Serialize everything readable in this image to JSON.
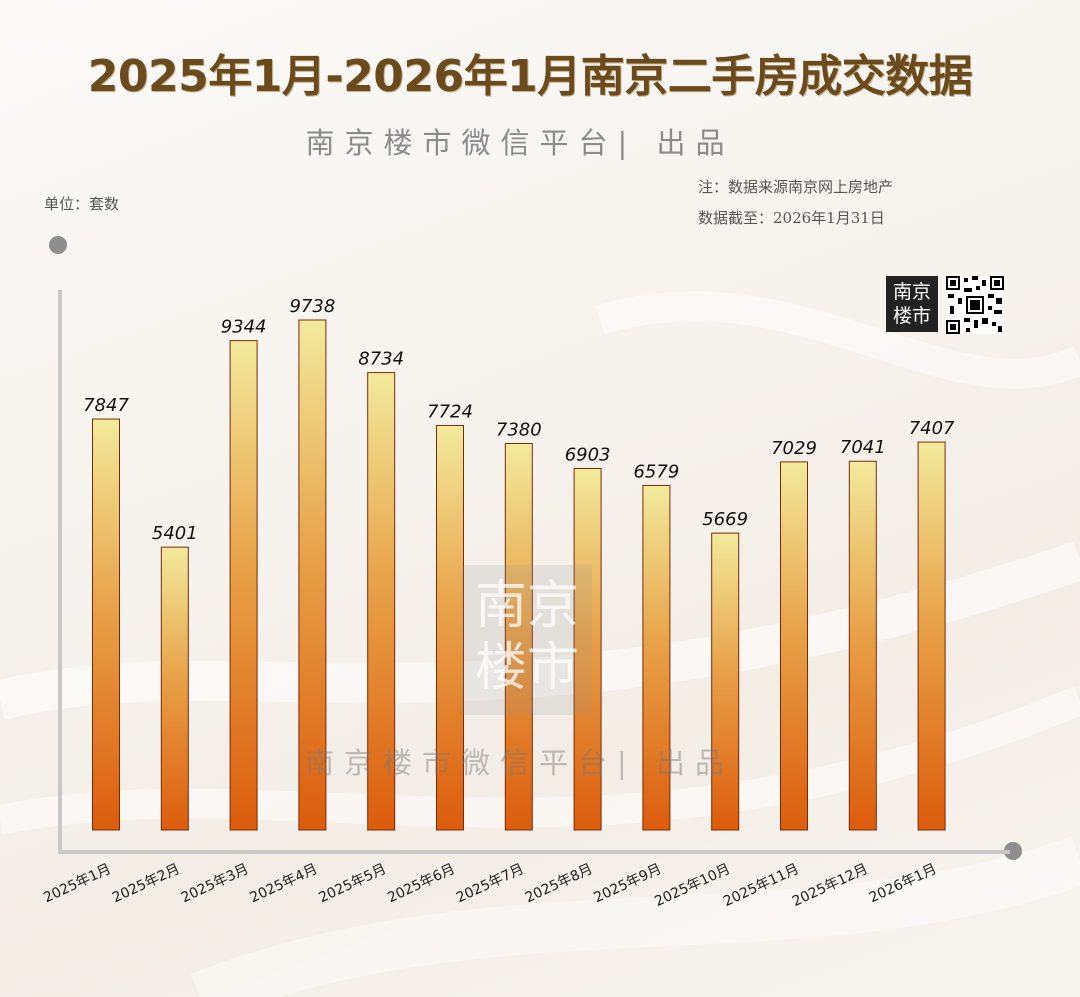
{
  "chart_data": {
    "type": "bar",
    "title": "2025年1月-2026年1月南京二手房成交数据",
    "subtitle": "南京楼市微信平台| 出品",
    "unit_label": "单位：套数",
    "note_source": "注：数据来源南京网上房地产",
    "note_date": "数据截至：2026年1月31日",
    "categories": [
      "2025年1月",
      "2025年2月",
      "2025年3月",
      "2025年4月",
      "2025年5月",
      "2025年6月",
      "2025年7月",
      "2025年8月",
      "2025年9月",
      "2025年10月",
      "2025年11月",
      "2025年12月",
      "2026年1月"
    ],
    "values": [
      7847,
      5401,
      9344,
      9738,
      8734,
      7724,
      7380,
      6903,
      6579,
      5669,
      7029,
      7041,
      7407
    ],
    "ylim": [
      0,
      10500
    ],
    "grid": false,
    "legend": "none"
  },
  "brand": {
    "logo_text": "南京\n楼市",
    "logo_line1": "南京",
    "logo_line2": "楼市",
    "watermark_line1": "南京",
    "watermark_line2": "楼市",
    "watermark_credit": "南京楼市微信平台| 出品"
  },
  "colors": {
    "title": "#6b4a1e",
    "bar_top": "#f2ea9c",
    "bar_mid": "#e8a34a",
    "bar_bottom": "#dc5c0c",
    "bar_border": "#7a2a0a",
    "axis": "#c8c8c8"
  }
}
